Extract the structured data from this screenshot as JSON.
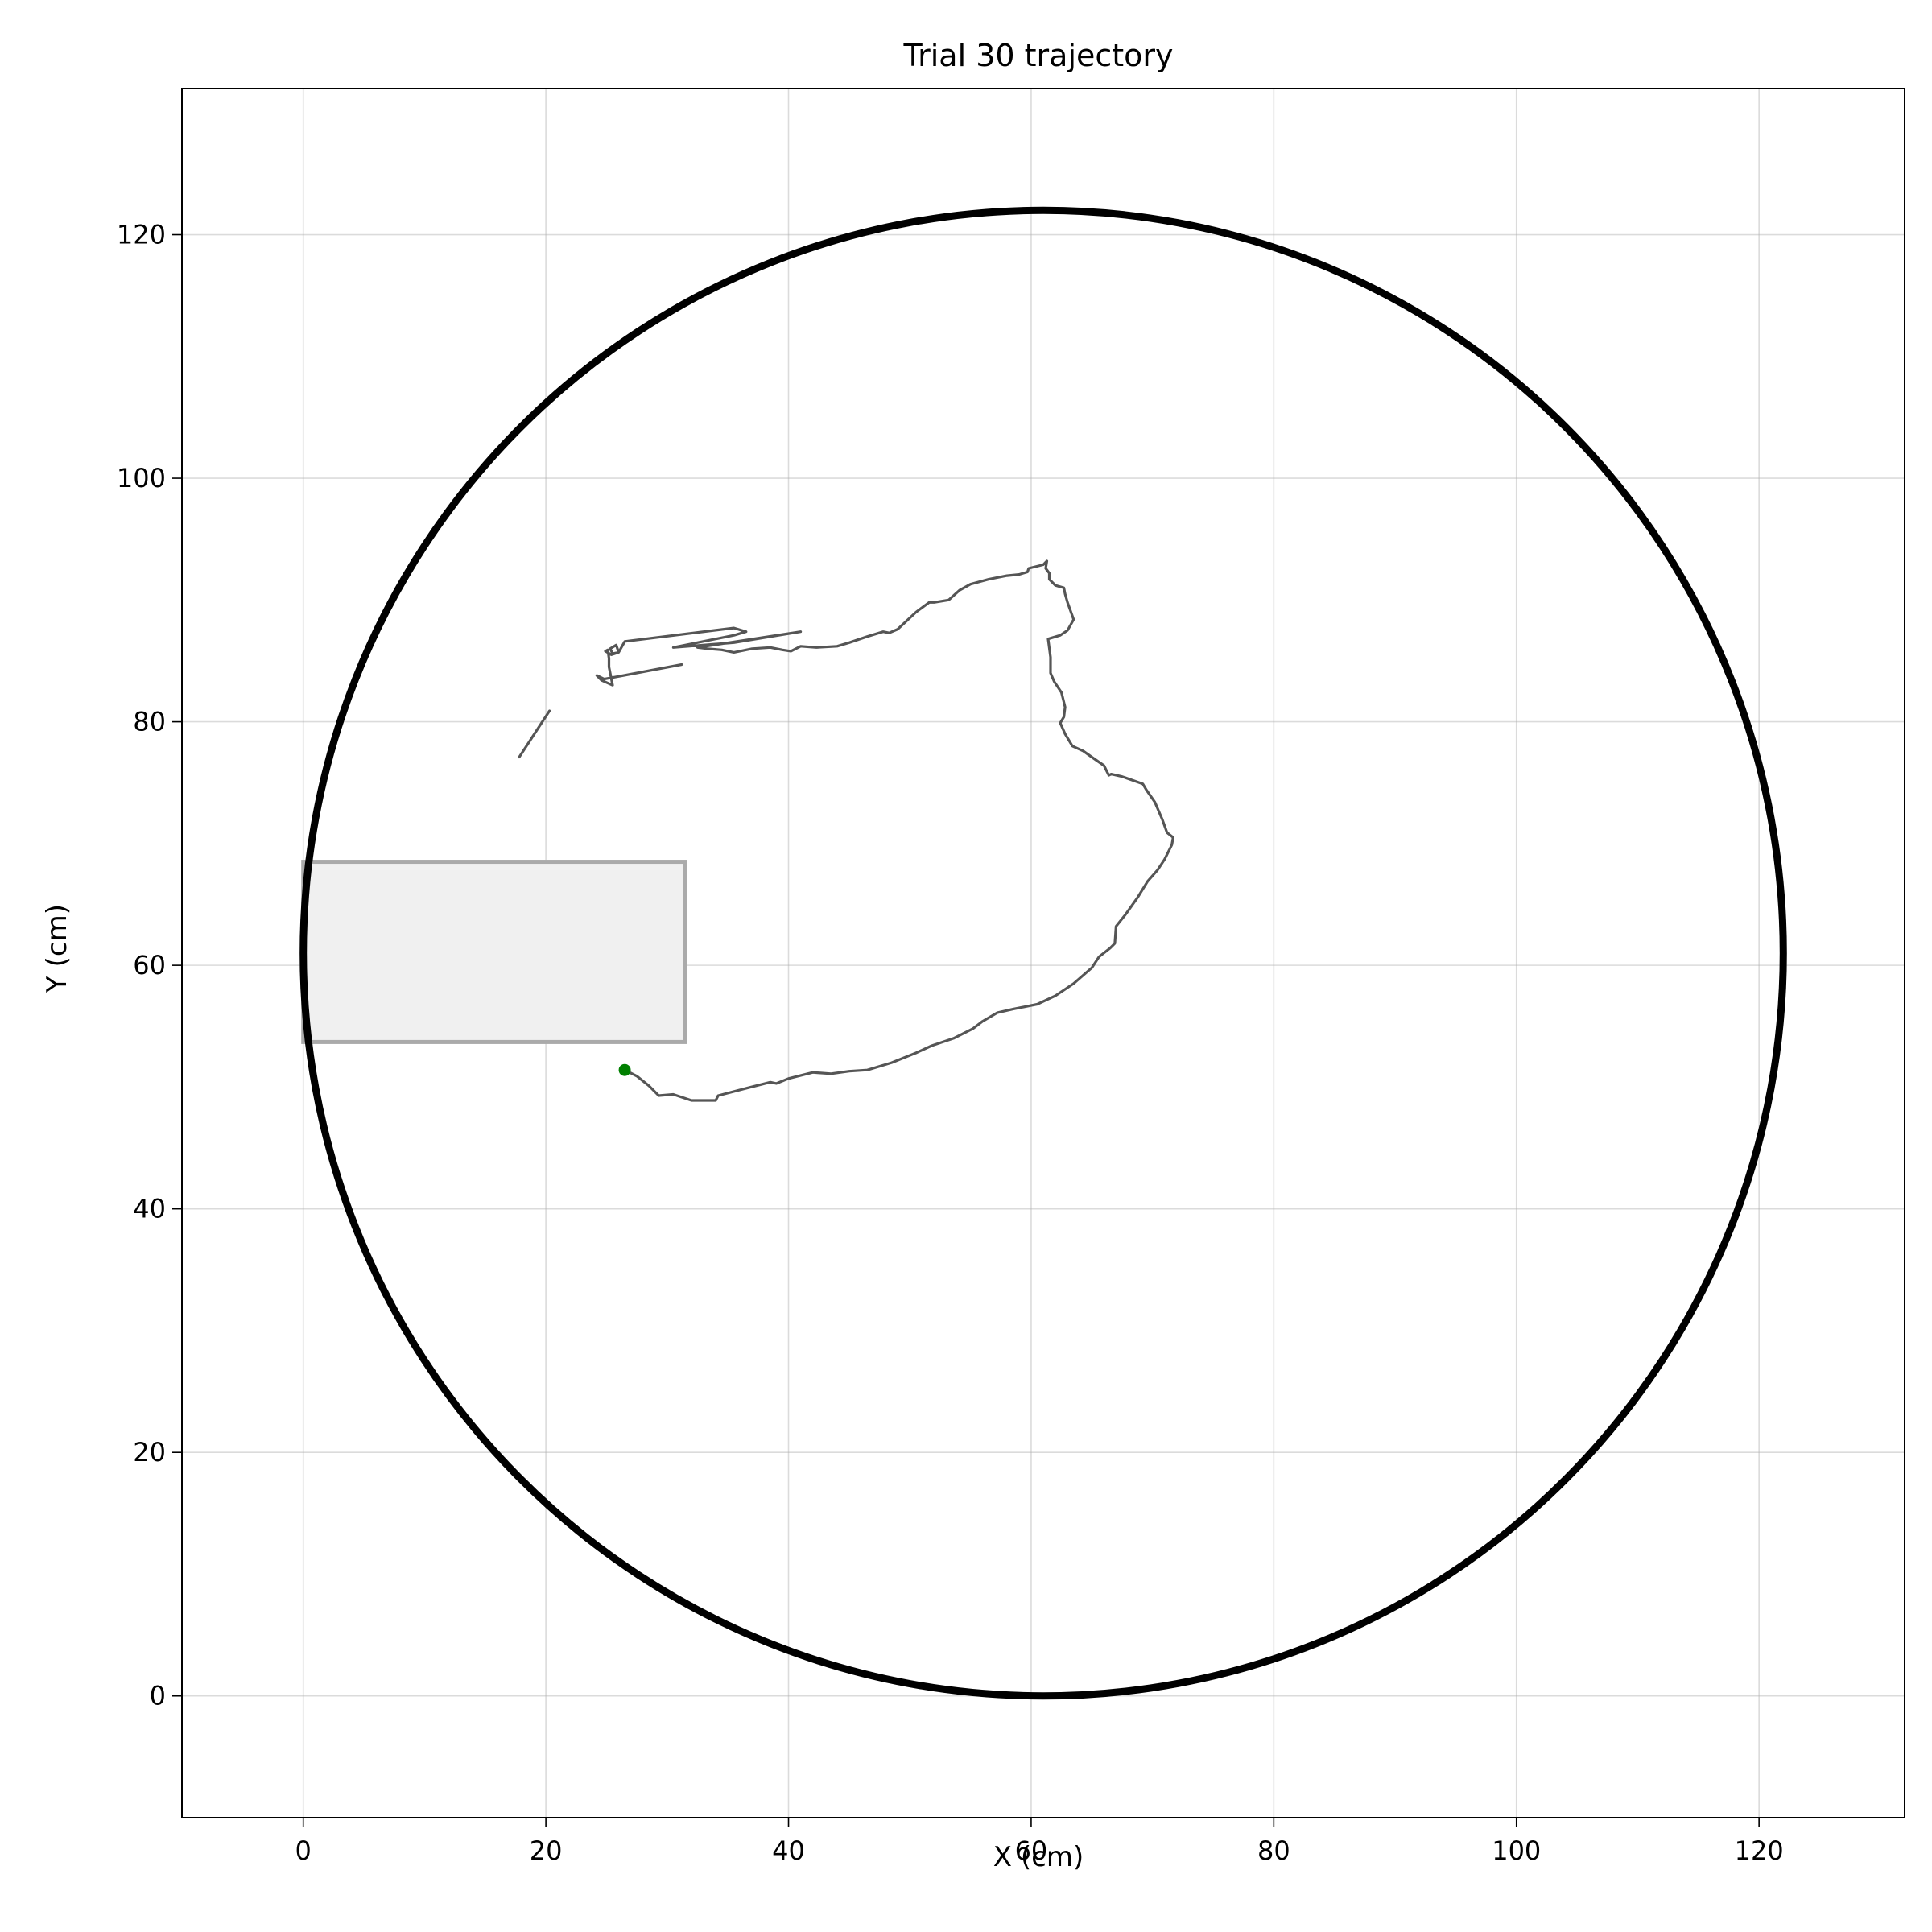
{
  "chart_data": {
    "type": "line",
    "title": "Trial 30 trajectory",
    "xlabel": "X (cm)",
    "ylabel": "Y (cm)",
    "xlim": [
      -10,
      132
    ],
    "ylim": [
      -10,
      132
    ],
    "xticks": [
      0,
      20,
      40,
      60,
      80,
      100,
      120
    ],
    "yticks": [
      0,
      20,
      40,
      60,
      80,
      100,
      120
    ],
    "grid": true,
    "arena": {
      "center": [
        61,
        61
      ],
      "radius": 61,
      "color": "#000000"
    },
    "zone": {
      "x0": 0,
      "y0": 53.7,
      "x1": 31.5,
      "y1": 68.5,
      "fill": "#f0f0f0",
      "stroke": "#aaaaaa"
    },
    "start_point": {
      "x": 26.5,
      "y": 51.4,
      "color": "#008000"
    },
    "trajectory_color": "#555555",
    "series": [
      {
        "points": [
          [
            26.5,
            51.4
          ],
          [
            27.5,
            50.9
          ],
          [
            28.5,
            50.1
          ],
          [
            29.3,
            49.3
          ],
          [
            30.5,
            49.4
          ],
          [
            32.0,
            48.9
          ],
          [
            34.0,
            48.9
          ],
          [
            34.2,
            49.3
          ],
          [
            36.5,
            49.9
          ],
          [
            38.5,
            50.4
          ],
          [
            39.0,
            50.3
          ],
          [
            40.0,
            50.7
          ],
          [
            42.0,
            51.2
          ],
          [
            43.5,
            51.1
          ],
          [
            45.0,
            51.3
          ],
          [
            46.5,
            51.4
          ],
          [
            48.5,
            52.0
          ],
          [
            50.5,
            52.8
          ],
          [
            51.8,
            53.4
          ],
          [
            53.6,
            54.0
          ],
          [
            55.2,
            54.8
          ],
          [
            56.0,
            55.4
          ],
          [
            57.2,
            56.1
          ],
          [
            58.5,
            56.4
          ],
          [
            60.5,
            56.8
          ],
          [
            62.0,
            57.5
          ],
          [
            63.5,
            58.5
          ],
          [
            65.0,
            59.8
          ],
          [
            65.6,
            60.7
          ],
          [
            66.5,
            61.4
          ],
          [
            66.9,
            61.8
          ],
          [
            67.0,
            63.2
          ],
          [
            67.8,
            64.2
          ],
          [
            68.8,
            65.6
          ],
          [
            69.6,
            66.9
          ],
          [
            70.4,
            67.8
          ],
          [
            71.0,
            68.7
          ],
          [
            71.6,
            69.9
          ],
          [
            71.7,
            70.5
          ],
          [
            71.2,
            70.9
          ],
          [
            70.8,
            72.0
          ],
          [
            70.2,
            73.4
          ],
          [
            69.5,
            74.4
          ],
          [
            69.2,
            74.9
          ],
          [
            67.5,
            75.5
          ],
          [
            66.6,
            75.7
          ],
          [
            66.4,
            75.6
          ],
          [
            66.0,
            76.4
          ],
          [
            65.0,
            77.1
          ],
          [
            64.3,
            77.6
          ],
          [
            63.4,
            78.0
          ],
          [
            62.8,
            79.0
          ],
          [
            62.4,
            79.9
          ],
          [
            62.7,
            80.4
          ],
          [
            62.8,
            81.2
          ],
          [
            62.6,
            82.0
          ],
          [
            62.5,
            82.4
          ],
          [
            61.9,
            83.3
          ],
          [
            61.6,
            84.0
          ],
          [
            61.6,
            85.3
          ],
          [
            61.4,
            86.8
          ],
          [
            62.4,
            87.1
          ],
          [
            63.0,
            87.5
          ],
          [
            63.5,
            88.4
          ],
          [
            63.0,
            89.8
          ],
          [
            62.8,
            90.5
          ],
          [
            62.7,
            91.0
          ],
          [
            62.0,
            91.2
          ],
          [
            61.5,
            91.7
          ],
          [
            61.5,
            92.2
          ],
          [
            61.2,
            92.6
          ],
          [
            61.3,
            93.2
          ],
          [
            61.0,
            92.9
          ],
          [
            59.8,
            92.6
          ],
          [
            59.7,
            92.3
          ],
          [
            59.0,
            92.1
          ],
          [
            58.0,
            92.0
          ],
          [
            56.5,
            91.7
          ],
          [
            55.0,
            91.3
          ],
          [
            54.1,
            90.8
          ],
          [
            53.2,
            90.0
          ],
          [
            52.0,
            89.8
          ],
          [
            51.6,
            89.8
          ],
          [
            50.5,
            89.0
          ],
          [
            49.0,
            87.6
          ],
          [
            48.3,
            87.3
          ],
          [
            47.8,
            87.4
          ],
          [
            46.5,
            87.0
          ],
          [
            45.0,
            86.5
          ],
          [
            44.0,
            86.2
          ],
          [
            42.3,
            86.1
          ],
          [
            41.0,
            86.2
          ],
          [
            40.2,
            85.8
          ],
          [
            39.5,
            85.9
          ],
          [
            38.5,
            86.1
          ],
          [
            37.0,
            86.0
          ],
          [
            35.5,
            85.7
          ],
          [
            34.5,
            85.9
          ],
          [
            33.3,
            86.0
          ],
          [
            32.5,
            86.1
          ],
          [
            41.0,
            87.4
          ],
          [
            35.5,
            86.5
          ],
          [
            30.5,
            86.1
          ],
          [
            35.5,
            87.1
          ],
          [
            36.5,
            87.4
          ],
          [
            35.5,
            87.7
          ],
          [
            26.5,
            86.6
          ],
          [
            26.0,
            85.7
          ],
          [
            25.5,
            85.6
          ],
          [
            25.3,
            86.0
          ],
          [
            25.8,
            86.3
          ],
          [
            26.0,
            85.7
          ],
          [
            25.4,
            85.5
          ],
          [
            24.9,
            85.8
          ],
          [
            25.1,
            85.9
          ],
          [
            25.2,
            85.2
          ],
          [
            25.2,
            84.5
          ],
          [
            25.5,
            83.0
          ],
          [
            24.6,
            83.4
          ],
          [
            24.2,
            83.8
          ],
          [
            24.8,
            83.5
          ],
          [
            31.2,
            84.7
          ]
        ]
      },
      {
        "points": [
          [
            17.8,
            77.1
          ],
          [
            20.3,
            80.9
          ]
        ]
      }
    ]
  }
}
